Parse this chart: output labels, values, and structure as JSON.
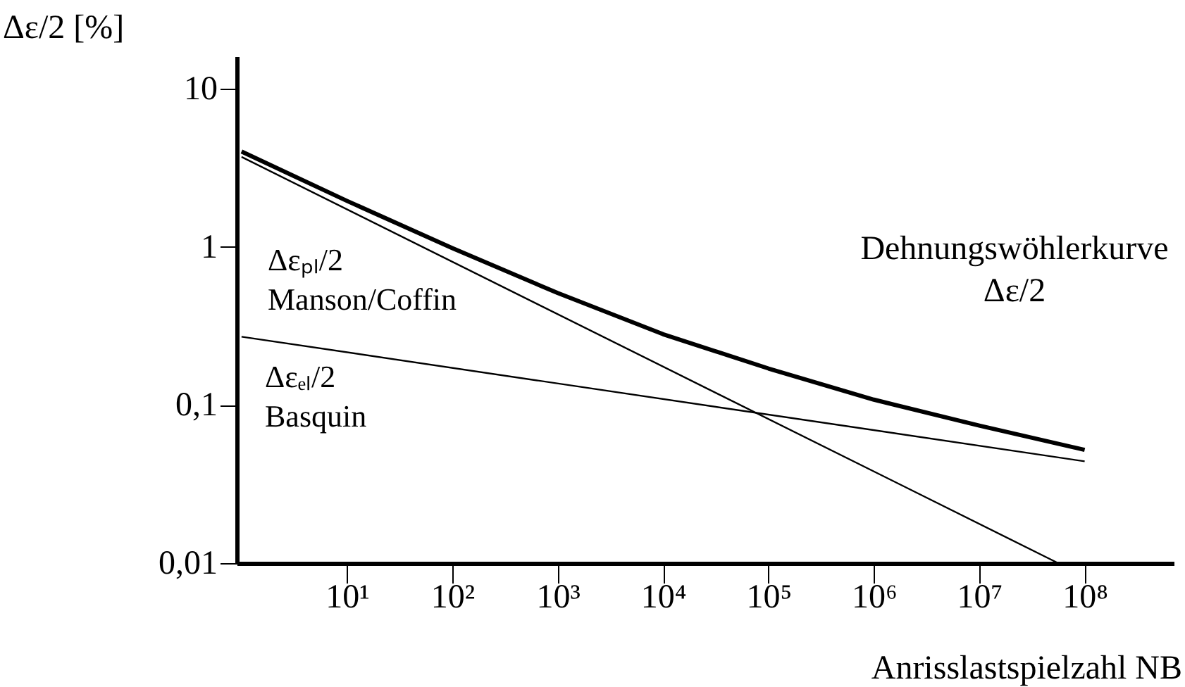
{
  "chart_data": {
    "type": "line",
    "xlabel": "Anrisslastspielzahl NB",
    "ylabel": "Δε/2 [%]",
    "log": "xy",
    "xlim": [
      0.9,
      700000000
    ],
    "ylim": [
      0.01,
      16
    ],
    "xticks": [
      {
        "value": 10,
        "label": "10¹"
      },
      {
        "value": 100,
        "label": "10²"
      },
      {
        "value": 1000,
        "label": "10³"
      },
      {
        "value": 10000,
        "label": "10⁴"
      },
      {
        "value": 100000,
        "label": "10⁵"
      },
      {
        "value": 1000000,
        "label": "10⁶"
      },
      {
        "value": 10000000,
        "label": "10⁷"
      },
      {
        "value": 100000000,
        "label": "10⁸"
      }
    ],
    "yticks": [
      {
        "value": 0.01,
        "label": "0,01"
      },
      {
        "value": 0.1,
        "label": "0,1"
      },
      1,
      10
    ],
    "grid": false,
    "marker": "none",
    "line_style": "solid",
    "series": [
      {
        "name": "Dehnungswöhlerkurve\nΔε/2",
        "color": "#000000",
        "x": [
          1,
          10,
          100,
          1000,
          10000,
          100000,
          1000000,
          10000000,
          100000000
        ],
        "values": [
          4.0,
          1.95,
          0.98,
          0.51,
          0.28,
          0.17,
          0.108,
          0.074,
          0.052
        ]
      },
      {
        "name": "Δεₚₗ/2\nManson/Coffin",
        "color": "#000000",
        "x": [
          1,
          56000000
        ],
        "values": [
          3.7,
          0.01
        ]
      },
      {
        "name": "Δεₑₗ/2\nBasquin",
        "color": "#000000",
        "x": [
          1,
          100000000
        ],
        "values": [
          0.27,
          0.044
        ]
      }
    ]
  }
}
